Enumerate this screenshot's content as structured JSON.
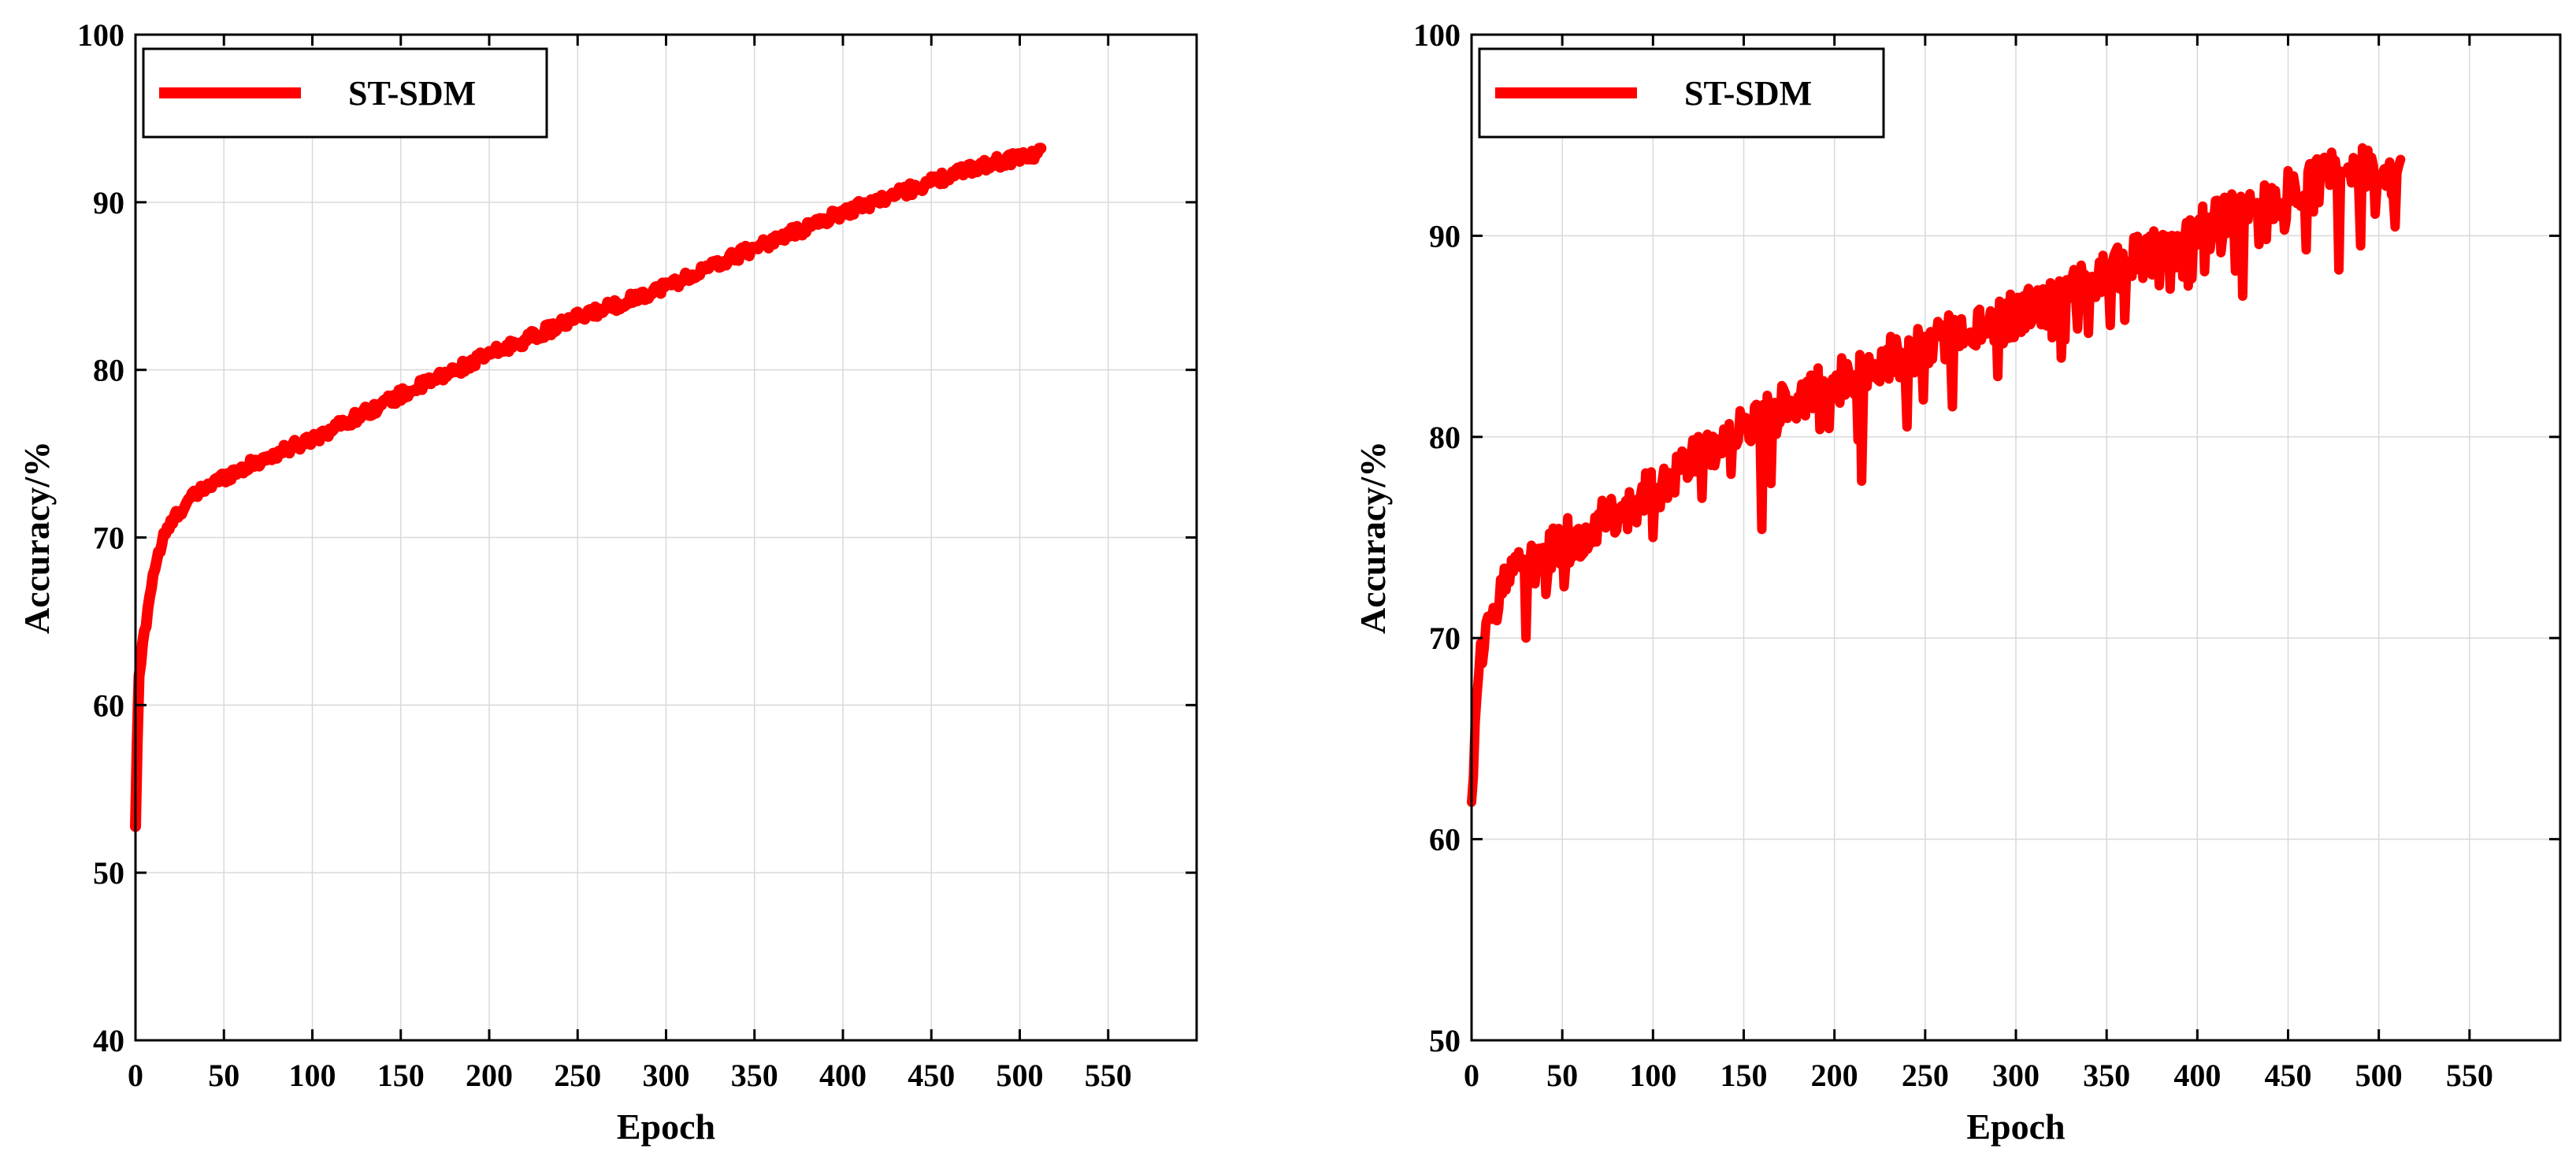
{
  "chart_data": [
    {
      "type": "line",
      "title": "",
      "xlabel": "Epoch",
      "ylabel": "Accuracy/%",
      "xlim": [
        0,
        600
      ],
      "ylim": [
        40,
        100
      ],
      "xticks": [
        0,
        50,
        100,
        150,
        200,
        250,
        300,
        350,
        400,
        450,
        500,
        550
      ],
      "yticks": [
        40,
        50,
        60,
        70,
        80,
        90,
        100
      ],
      "grid": true,
      "legend_position": "top-left",
      "series": [
        {
          "name": "ST-SDM",
          "color": "#ff0000",
          "noise": "low",
          "x": [
            0,
            1,
            2,
            4,
            6,
            8,
            10,
            13,
            16,
            20,
            25,
            30,
            40,
            50,
            60,
            80,
            100,
            125,
            150,
            175,
            200,
            225,
            250,
            275,
            300,
            325,
            350,
            375,
            400,
            425,
            450,
            475,
            500,
            512
          ],
          "y": [
            52.5,
            58,
            61.5,
            63.5,
            65,
            66.5,
            67.8,
            69,
            70,
            70.8,
            71.6,
            72.2,
            73,
            73.6,
            74.1,
            75,
            75.9,
            77.2,
            78.5,
            79.7,
            80.9,
            82,
            83.1,
            84,
            85,
            86.1,
            87.3,
            88.3,
            89.4,
            90.3,
            91.2,
            92.1,
            92.7,
            93
          ]
        }
      ]
    },
    {
      "type": "line",
      "title": "",
      "xlabel": "Epoch",
      "ylabel": "Accuracy/%",
      "xlim": [
        0,
        600
      ],
      "ylim": [
        50,
        100
      ],
      "xticks": [
        0,
        50,
        100,
        150,
        200,
        250,
        300,
        350,
        400,
        450,
        500,
        550
      ],
      "yticks": [
        50,
        60,
        70,
        80,
        90,
        100
      ],
      "grid": true,
      "legend_position": "top-left",
      "series": [
        {
          "name": "ST-SDM",
          "color": "#ff0000",
          "noise": "high",
          "x": [
            0,
            1,
            2,
            4,
            6,
            8,
            10,
            15,
            20,
            30,
            40,
            50,
            75,
            100,
            125,
            150,
            175,
            200,
            225,
            250,
            275,
            300,
            325,
            350,
            375,
            400,
            425,
            450,
            475,
            500,
            512
          ],
          "y": [
            62,
            64,
            66,
            68,
            69.5,
            70.5,
            71.3,
            72,
            72.6,
            73.5,
            74.2,
            74.7,
            75.8,
            77.3,
            79,
            80.5,
            81.6,
            82.6,
            83.6,
            84.6,
            85.4,
            86,
            86.9,
            88,
            89.2,
            90.2,
            91.2,
            92.3,
            93.1,
            93.6,
            93.4
          ],
          "dips": [
            [
              30,
              70
            ],
            [
              100,
              75
            ],
            [
              160,
              75.4
            ],
            [
              215,
              77.8
            ],
            [
              240,
              80.5
            ],
            [
              265,
              81.5
            ],
            [
              290,
              83
            ],
            [
              360,
              85.8
            ],
            [
              395,
              87.5
            ],
            [
              425,
              87
            ],
            [
              460,
              89.3
            ],
            [
              478,
              88.3
            ],
            [
              490,
              89.5
            ]
          ]
        }
      ]
    }
  ]
}
